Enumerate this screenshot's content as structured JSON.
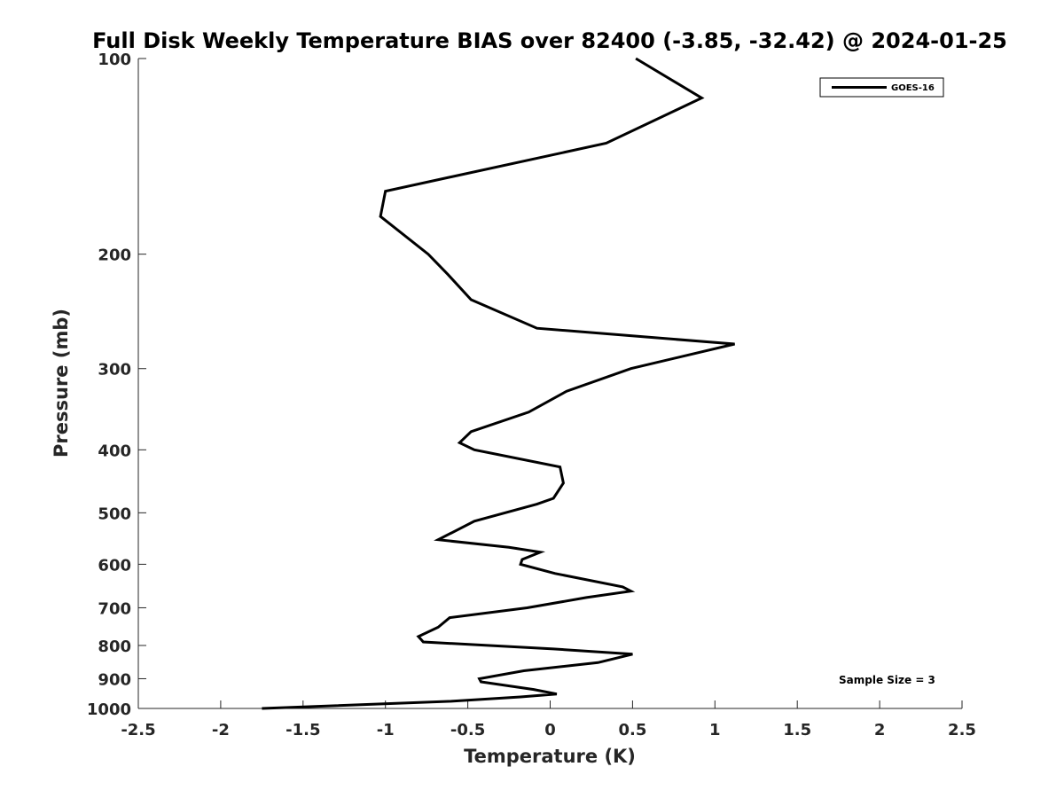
{
  "chart_data": {
    "type": "line",
    "title": "Full Disk Weekly Temperature BIAS over 82400 (-3.85, -32.42) @ 2024-01-25",
    "xlabel": "Temperature (K)",
    "ylabel": "Pressure (mb)",
    "xlim": [
      -2.5,
      2.5
    ],
    "ylim": [
      1000,
      100
    ],
    "yscale": "log",
    "y_reversed": true,
    "grid": false,
    "x_ticks": [
      -2.5,
      -2,
      -1.5,
      -1,
      -0.5,
      0,
      0.5,
      1,
      1.5,
      2,
      2.5
    ],
    "x_tick_labels": [
      "-2.5",
      "-2",
      "-1.5",
      "-1",
      "-0.5",
      "0",
      "0.5",
      "1",
      "1.5",
      "2",
      "2.5"
    ],
    "y_ticks": [
      100,
      200,
      300,
      400,
      500,
      600,
      700,
      800,
      900,
      1000
    ],
    "y_tick_labels": [
      "100",
      "200",
      "300",
      "400",
      "500",
      "600",
      "700",
      "800",
      "900",
      "1000"
    ],
    "legend_position": "top-right",
    "series": [
      {
        "name": "GOES-16",
        "color": "#000000",
        "x": [
          0.52,
          0.92,
          0.34,
          -1.0,
          -1.03,
          -0.74,
          -0.62,
          -0.48,
          -0.08,
          1.12,
          0.49,
          0.1,
          -0.13,
          -0.48,
          -0.55,
          -0.46,
          0.06,
          0.08,
          0.02,
          -0.08,
          -0.46,
          -0.68,
          -0.25,
          -0.06,
          -0.17,
          -0.18,
          0.03,
          0.44,
          0.49,
          0.22,
          -0.14,
          -0.61,
          -0.68,
          -0.8,
          -0.77,
          0.02,
          0.5,
          0.29,
          -0.16,
          -0.43,
          -0.42,
          -0.1,
          0.04,
          -0.18,
          -0.6,
          -1.75
        ],
        "y": [
          100,
          115,
          135,
          160,
          175,
          200,
          215,
          235,
          260,
          275,
          300,
          325,
          350,
          375,
          390,
          400,
          425,
          450,
          475,
          485,
          515,
          550,
          565,
          575,
          590,
          600,
          620,
          650,
          660,
          675,
          700,
          725,
          750,
          775,
          790,
          810,
          825,
          850,
          875,
          900,
          910,
          935,
          950,
          960,
          975,
          1000
        ]
      }
    ],
    "annotations": [
      "Sample Size = 3"
    ]
  }
}
